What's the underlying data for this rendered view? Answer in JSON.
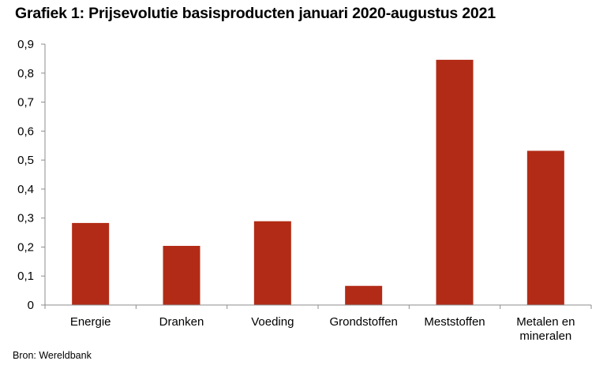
{
  "chart_data": {
    "type": "bar",
    "title": "Grafiek 1: Prijsevolutie basisproducten januari 2020-augustus 2021",
    "categories": [
      "Energie",
      "Dranken",
      "Voeding",
      "Grondstoffen",
      "Meststoffen",
      "Metalen en mineralen"
    ],
    "category_lines": [
      [
        "Energie"
      ],
      [
        "Dranken"
      ],
      [
        "Voeding"
      ],
      [
        "Grondstoffen"
      ],
      [
        "Meststoffen"
      ],
      [
        "Metalen en",
        "mineralen"
      ]
    ],
    "values": [
      0.283,
      0.204,
      0.289,
      0.066,
      0.846,
      0.532
    ],
    "ylim": [
      0,
      0.9
    ],
    "yticks": [
      0,
      0.1,
      0.2,
      0.3,
      0.4,
      0.5,
      0.6,
      0.7,
      0.8,
      0.9
    ],
    "ytick_labels": [
      "0",
      "0,1",
      "0,2",
      "0,3",
      "0,4",
      "0,5",
      "0,6",
      "0,7",
      "0,8",
      "0,9"
    ],
    "xlabel": "",
    "ylabel": "",
    "grid": false,
    "legend": "none",
    "bar_color": "#B22B16",
    "axis_color": "#8c8c8c"
  },
  "source": "Bron: Wereldbank"
}
